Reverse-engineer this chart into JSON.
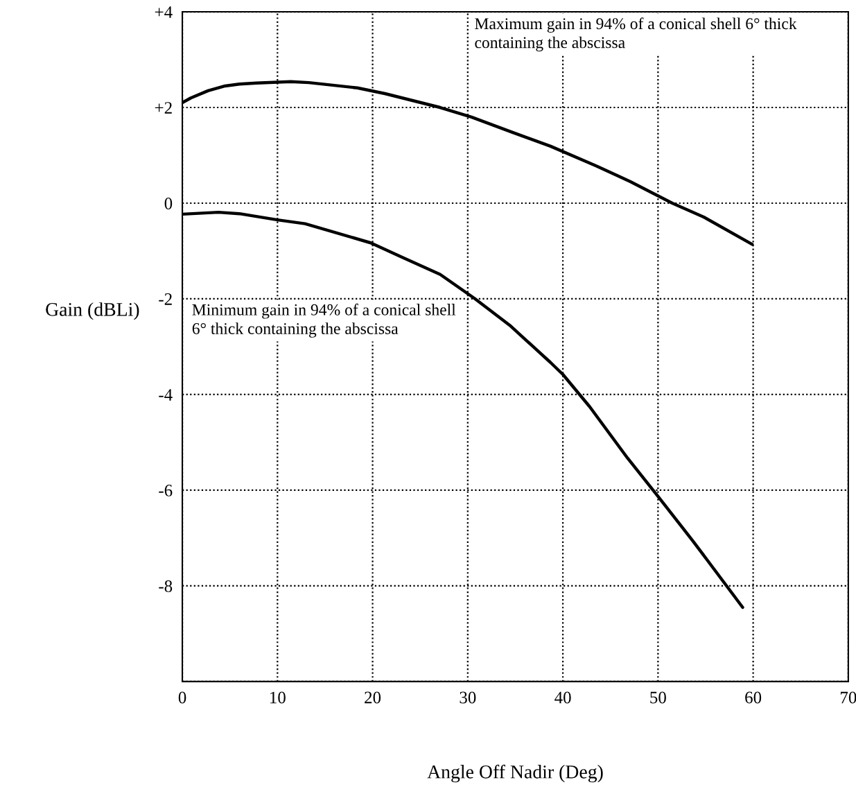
{
  "chart_data": {
    "type": "line",
    "xlabel": "Angle Off Nadir (Deg)",
    "ylabel": "Gain (dBLi)",
    "annotations": [
      "Maximum gain in 94% of a conical shell 6° thick containing the abscissa",
      "Minimum gain in 94% of a conical shell 6° thick containing the abscissa"
    ],
    "series": [
      {
        "color": "#000000",
        "x": [
          0,
          0.9,
          2.7,
          4.5,
          6,
          7.8,
          11.4,
          13.3,
          18.4,
          21.3,
          27.1,
          30.4,
          34.7,
          38.7,
          43.5,
          47.1,
          51.5,
          54.8,
          59.9
        ],
        "values": [
          2.1,
          2.2,
          2.35,
          2.45,
          2.49,
          2.51,
          2.54,
          2.52,
          2.41,
          2.29,
          2.0,
          1.8,
          1.48,
          1.19,
          0.78,
          0.45,
          0.0,
          -0.29,
          -0.86
        ]
      },
      {
        "color": "#000000",
        "x": [
          0,
          3.8,
          6,
          10,
          12.9,
          19.8,
          23.1,
          27.1,
          30.7,
          34.4,
          38.7,
          40,
          42.8,
          46.8,
          50,
          53.7,
          58.9
        ],
        "values": [
          -0.23,
          -0.19,
          -0.22,
          -0.35,
          -0.43,
          -0.83,
          -1.13,
          -1.49,
          -1.99,
          -2.55,
          -3.33,
          -3.58,
          -4.25,
          -5.33,
          -6.13,
          -7.07,
          -8.45
        ]
      }
    ],
    "xlim": [
      0,
      70
    ],
    "xticks": [
      0,
      10,
      20,
      30,
      40,
      50,
      60,
      70
    ],
    "ylim": [
      -10,
      4
    ],
    "yticks": [
      {
        "value": -10,
        "label": null
      },
      -8,
      -6,
      -4,
      -2,
      0,
      {
        "value": 2,
        "label": "+2"
      },
      {
        "value": 4,
        "label": "+4"
      }
    ],
    "grid": true,
    "marker": "none",
    "line_style": "solid"
  }
}
